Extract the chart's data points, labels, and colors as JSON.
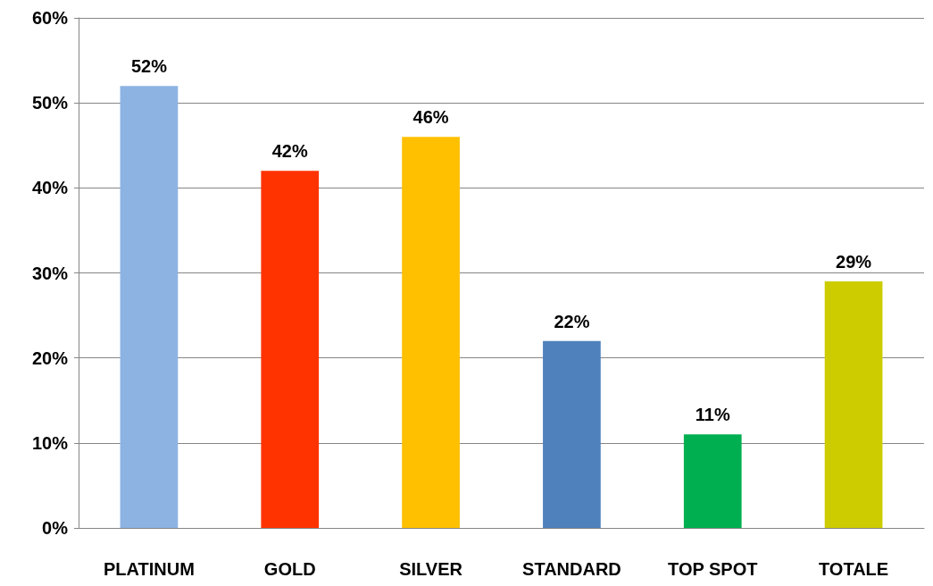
{
  "chart_data": {
    "type": "bar",
    "categories": [
      "PLATINUM",
      "GOLD",
      "SILVER",
      "STANDARD",
      "TOP SPOT",
      "TOTALE"
    ],
    "values": [
      52,
      42,
      46,
      22,
      11,
      29
    ],
    "colors": [
      "#8db3e2",
      "#ff3300",
      "#ffc000",
      "#4f81bd",
      "#00b050",
      "#cccc00"
    ],
    "value_labels": [
      "52%",
      "42%",
      "46%",
      "22%",
      "11%",
      "29%"
    ],
    "ylim": [
      0,
      60
    ],
    "yticks": [
      {
        "value": 0,
        "label": "0%"
      },
      {
        "value": 10,
        "label": "10%"
      },
      {
        "value": 20,
        "label": "20%"
      },
      {
        "value": 30,
        "label": "30%"
      },
      {
        "value": 40,
        "label": "40%"
      },
      {
        "value": 50,
        "label": "50%"
      },
      {
        "value": 60,
        "label": "60%"
      }
    ],
    "grid": "y"
  }
}
